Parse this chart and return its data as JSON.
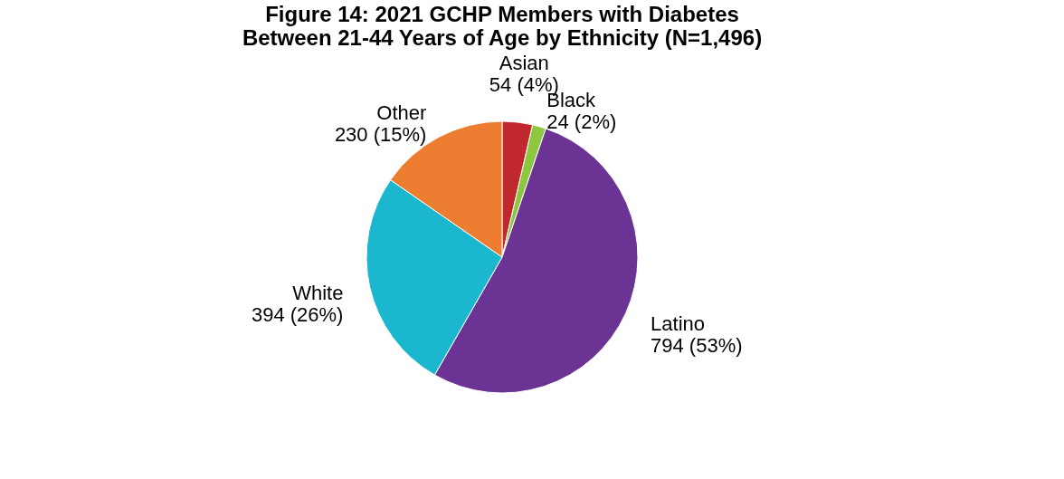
{
  "chart_data": {
    "type": "pie",
    "title": "Figure 14: 2021 GCHP Members with Diabetes\nBetween 21-44 Years of Age by Ethnicity (N=1,496)",
    "categories": [
      "Asian",
      "Black",
      "Latino",
      "White",
      "Other"
    ],
    "values": [
      54,
      24,
      794,
      394,
      230
    ],
    "value_labels": [
      "54 (4%)",
      "24 (2%)",
      "794 (53%)",
      "394 (26%)",
      "230 (15%)"
    ],
    "colors": [
      "#c0282d",
      "#8dc63f",
      "#6b3494",
      "#1ab7cf",
      "#ed7d31"
    ],
    "legend": false
  }
}
